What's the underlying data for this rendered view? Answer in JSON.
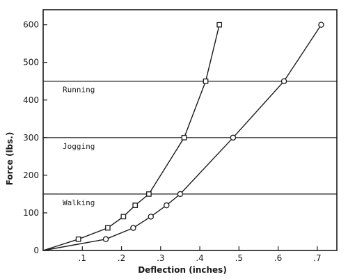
{
  "chart_data": {
    "type": "line",
    "xlabel": "Deflection (inches)",
    "ylabel": "Force (lbs.)",
    "xlim": [
      0,
      0.75
    ],
    "ylim": [
      0,
      640
    ],
    "x_ticks": [
      {
        "value": 0.1,
        "label": ".1"
      },
      {
        "value": 0.2,
        "label": ".2"
      },
      {
        "value": 0.3,
        "label": ".3"
      },
      {
        "value": 0.4,
        "label": ".4"
      },
      {
        "value": 0.5,
        "label": ".5"
      },
      {
        "value": 0.6,
        "label": ".6"
      },
      {
        "value": 0.7,
        "label": ".7"
      }
    ],
    "y_ticks": [
      {
        "value": 0,
        "label": "0"
      },
      {
        "value": 100,
        "label": "100"
      },
      {
        "value": 200,
        "label": "200"
      },
      {
        "value": 300,
        "label": "300"
      },
      {
        "value": 400,
        "label": "400"
      },
      {
        "value": 500,
        "label": "500"
      },
      {
        "value": 600,
        "label": "600"
      }
    ],
    "series": [
      {
        "marker": "square",
        "x": [
          0,
          0.09,
          0.165,
          0.205,
          0.235,
          0.27,
          0.36,
          0.415,
          0.45
        ],
        "y": [
          0,
          30,
          60,
          90,
          120,
          150,
          300,
          450,
          600
        ]
      },
      {
        "marker": "circle",
        "x": [
          0,
          0.16,
          0.23,
          0.275,
          0.315,
          0.35,
          0.485,
          0.615,
          0.71
        ],
        "y": [
          0,
          30,
          60,
          90,
          120,
          150,
          300,
          450,
          600
        ]
      }
    ],
    "reference_lines": [
      {
        "value": 150,
        "label": "Walking"
      },
      {
        "value": 300,
        "label": "Jogging"
      },
      {
        "value": 450,
        "label": "Running"
      }
    ],
    "grid": false,
    "legend": "none"
  },
  "colors": {
    "ink": "#1a1a1a",
    "background": "#ffffff"
  }
}
